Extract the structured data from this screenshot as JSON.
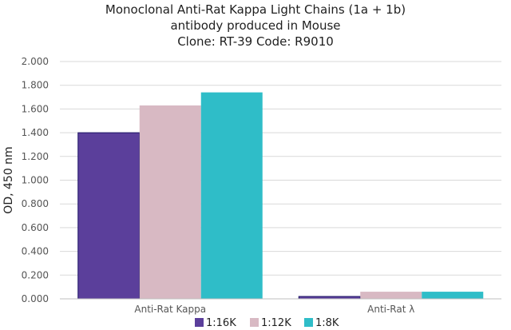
{
  "chart_data": {
    "type": "bar",
    "title_lines": [
      "Monoclonal Anti-Rat Kappa Light Chains (1a + 1b)",
      "antibody produced in Mouse",
      "Clone: RT-39   Code: R9010"
    ],
    "ylabel": "OD, 450 nm",
    "xlabel": "",
    "categories": [
      "Anti-Rat Kappa",
      "Anti-Rat λ"
    ],
    "ylim": [
      0,
      2.0
    ],
    "yticks": [
      "0.000",
      "0.200",
      "0.400",
      "0.600",
      "0.800",
      "1.000",
      "1.200",
      "1.400",
      "1.600",
      "1.800",
      "2.000"
    ],
    "series": [
      {
        "name": "1:16K",
        "color": "#5b3f9b",
        "values": [
          1.4,
          0.02
        ]
      },
      {
        "name": "1:12K",
        "color": "#d8b9c3",
        "values": [
          1.63,
          0.06
        ]
      },
      {
        "name": "1:8K",
        "color": "#2fbdc8",
        "values": [
          1.74,
          0.06
        ]
      }
    ],
    "grid": true,
    "legend_position": "bottom"
  }
}
